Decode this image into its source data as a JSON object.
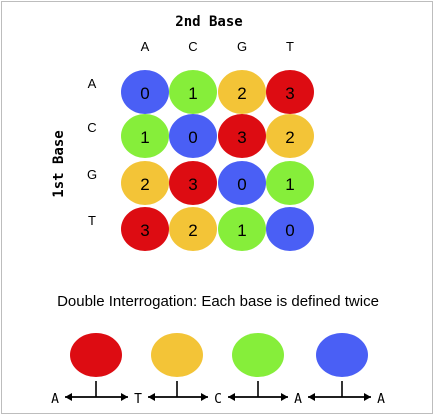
{
  "title_top": "2nd Base",
  "title_side": "1st Base",
  "columns": [
    "A",
    "C",
    "G",
    "T"
  ],
  "rows": [
    "A",
    "C",
    "G",
    "T"
  ],
  "matrix": [
    [
      0,
      1,
      2,
      3
    ],
    [
      1,
      0,
      3,
      2
    ],
    [
      2,
      3,
      0,
      1
    ],
    [
      3,
      2,
      1,
      0
    ]
  ],
  "colors": {
    "0": "#4a5ff5",
    "1": "#86ee3a",
    "2": "#f3c437",
    "3": "#dd0c12"
  },
  "caption": "Double Interrogation: Each base is defined twice",
  "bottom_circles": [
    {
      "code": 3,
      "color": "#dd0c12"
    },
    {
      "code": 2,
      "color": "#f3c437"
    },
    {
      "code": 1,
      "color": "#86ee3a"
    },
    {
      "code": 0,
      "color": "#4a5ff5"
    }
  ],
  "bottom_bases": [
    "A",
    "T",
    "C",
    "A",
    "A"
  ]
}
